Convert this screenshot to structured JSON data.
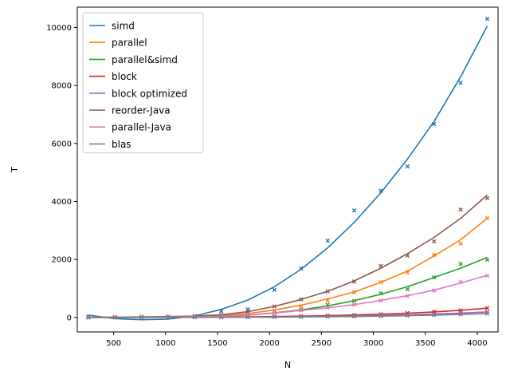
{
  "chart_data": {
    "type": "line",
    "title": "",
    "xlabel": "N",
    "ylabel": "T",
    "xlim": [
      150,
      4200
    ],
    "ylim": [
      -500,
      10700
    ],
    "xticks": [
      500,
      1000,
      1500,
      2000,
      2500,
      3000,
      3500,
      4000
    ],
    "yticks": [
      0,
      2000,
      4000,
      6000,
      8000,
      10000
    ],
    "grid": false,
    "legend_position": "top-left",
    "x": [
      256,
      512,
      768,
      1024,
      1280,
      1536,
      1792,
      2048,
      2304,
      2560,
      2816,
      3072,
      3328,
      3584,
      3840,
      4096
    ],
    "series": [
      {
        "name": "simd",
        "color": "#1f77b4",
        "fit": [
          80,
          -40,
          -80,
          -60,
          50,
          280,
          600,
          1060,
          1660,
          2400,
          3280,
          4300,
          5460,
          6760,
          8300,
          10050
        ],
        "points": [
          30,
          10,
          20,
          30,
          50,
          220,
          280,
          950,
          1690,
          2650,
          3690,
          4370,
          5210,
          6670,
          8090,
          10300
        ]
      },
      {
        "name": "parallel",
        "color": "#ff7f0e",
        "fit": [
          0,
          10,
          15,
          20,
          30,
          60,
          130,
          260,
          420,
          640,
          880,
          1210,
          1600,
          2120,
          2680,
          3420
        ],
        "points": [
          0,
          10,
          15,
          20,
          30,
          50,
          110,
          230,
          390,
          580,
          870,
          1220,
          1550,
          2160,
          2550,
          3420
        ]
      },
      {
        "name": "parallel&simd",
        "color": "#2ca02c",
        "fit": [
          0,
          5,
          10,
          15,
          20,
          40,
          80,
          160,
          260,
          400,
          580,
          800,
          1060,
          1380,
          1700,
          2070
        ],
        "points": [
          0,
          5,
          10,
          15,
          20,
          40,
          80,
          150,
          270,
          440,
          570,
          830,
          970,
          1380,
          1840,
          1990
        ]
      },
      {
        "name": "block",
        "color": "#d62728",
        "fit": [
          0,
          2,
          4,
          6,
          10,
          15,
          22,
          32,
          46,
          64,
          86,
          112,
          148,
          192,
          246,
          320
        ],
        "points": [
          0,
          2,
          4,
          6,
          10,
          15,
          22,
          32,
          46,
          66,
          86,
          112,
          150,
          195,
          240,
          320
        ]
      },
      {
        "name": "block optimized",
        "color": "#9467bd",
        "fit": [
          0,
          1,
          2,
          3,
          5,
          8,
          12,
          18,
          26,
          38,
          52,
          70,
          92,
          118,
          150,
          190
        ],
        "points": [
          0,
          1,
          2,
          3,
          5,
          8,
          12,
          18,
          26,
          38,
          52,
          70,
          92,
          118,
          150,
          190
        ]
      },
      {
        "name": "reorder-Java",
        "color": "#8c564b",
        "fit": [
          0,
          10,
          20,
          30,
          45,
          90,
          200,
          380,
          620,
          900,
          1260,
          1700,
          2200,
          2760,
          3420,
          4220
        ],
        "points": [
          0,
          10,
          20,
          30,
          45,
          90,
          200,
          380,
          620,
          900,
          1240,
          1780,
          2130,
          2620,
          3720,
          4110
        ]
      },
      {
        "name": "parallel-Java",
        "color": "#e377c2",
        "fit": [
          0,
          5,
          10,
          15,
          20,
          40,
          80,
          150,
          240,
          330,
          440,
          590,
          750,
          940,
          1190,
          1450
        ],
        "points": [
          0,
          5,
          10,
          15,
          20,
          40,
          80,
          150,
          240,
          340,
          440,
          580,
          740,
          930,
          1220,
          1440
        ]
      },
      {
        "name": "blas",
        "color": "#7f7f7f",
        "fit": [
          0,
          1,
          2,
          3,
          4,
          6,
          9,
          13,
          18,
          24,
          32,
          44,
          60,
          80,
          104,
          130
        ],
        "points": [
          0,
          1,
          2,
          3,
          4,
          6,
          9,
          13,
          18,
          24,
          32,
          44,
          60,
          80,
          104,
          130
        ]
      }
    ]
  }
}
